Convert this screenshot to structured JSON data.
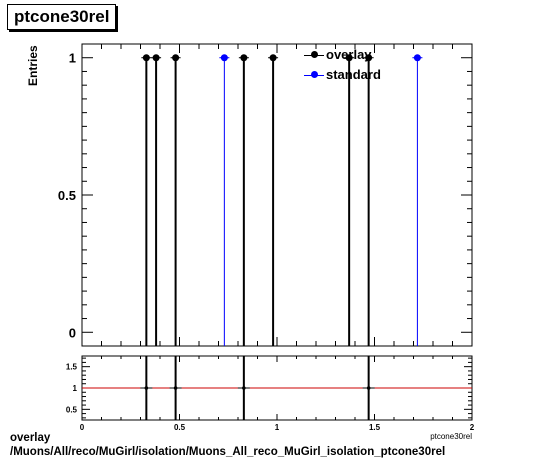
{
  "title": "ptcone30rel",
  "footer": {
    "line1": "overlay",
    "line2": "/Muons/All/reco/MuGirl/isolation/Muons_All_reco_MuGirl_isolation_ptcone30rel"
  },
  "colors": {
    "overlay": "#000000",
    "standard": "#0000ff",
    "ratio_line": "#cc0000"
  },
  "chart_data": [
    {
      "type": "scatter",
      "title": "ptcone30rel",
      "ylabel": "Entries",
      "xlim": [
        0,
        2
      ],
      "ylim": [
        -0.05,
        1.05
      ],
      "yticks": [
        0,
        0.5,
        1
      ],
      "yticklabels": [
        "0",
        "0.5",
        "1"
      ],
      "legend": "top-right",
      "series": [
        {
          "name": "overlay",
          "color": "#000000",
          "x": [
            0.33,
            0.38,
            0.48,
            0.83,
            0.98,
            1.37,
            1.47
          ],
          "y": [
            1,
            1,
            1,
            1,
            1,
            1,
            1
          ]
        },
        {
          "name": "standard",
          "color": "#0000ff",
          "x": [
            0.73,
            1.72
          ],
          "y": [
            1,
            1
          ]
        }
      ]
    },
    {
      "type": "line",
      "xlabel": "ptcone30rel",
      "xlim": [
        0,
        2
      ],
      "ylim": [
        0.25,
        1.75
      ],
      "xticks": [
        0,
        0.5,
        1,
        1.5,
        2
      ],
      "xticklabels": [
        "0",
        "0.5",
        "1",
        "1.5",
        "2"
      ],
      "yticks": [
        0.5,
        1,
        1.5
      ],
      "yticklabels": [
        "0.5",
        "1",
        "1.5"
      ],
      "reference_line": 1,
      "markers_x": [
        0.33,
        0.48,
        0.83,
        1.47
      ],
      "markers_y": [
        1,
        1,
        1,
        1
      ]
    }
  ]
}
